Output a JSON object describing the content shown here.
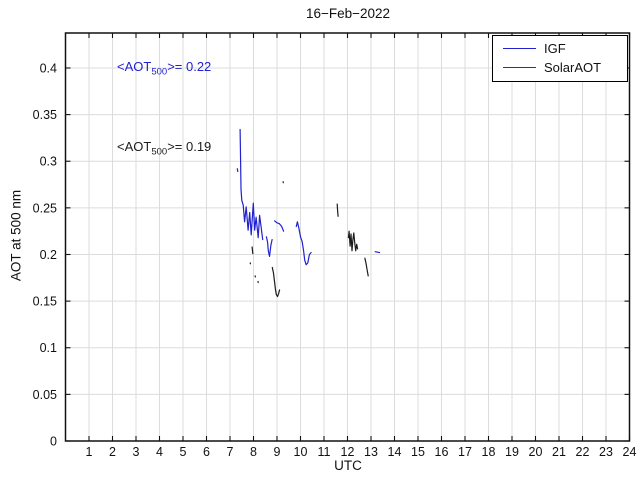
{
  "title": "16−Feb−2022",
  "axes": {
    "xlabel": "UTC",
    "ylabel": "AOT at 500 nm"
  },
  "annotations": [
    {
      "pre": "<AOT",
      "sub": "500",
      "post": ">= 0.22",
      "color": "#2121cf"
    },
    {
      "pre": "<AOT",
      "sub": "500",
      "post": ">= 0.19",
      "color": "#1c1c1c"
    }
  ],
  "legend": {
    "items": [
      {
        "label": "IGF",
        "color": "#2121cf"
      },
      {
        "label": "SolarAOT",
        "color": "#3c3c3c"
      }
    ]
  },
  "chart_data": {
    "type": "line",
    "title": "16−Feb−2022",
    "xlabel": "UTC",
    "ylabel": "AOT at 500 nm",
    "xlim": [
      0,
      24
    ],
    "ylim": [
      0,
      0.4375
    ],
    "x_ticks": [
      1,
      2,
      3,
      4,
      5,
      6,
      7,
      8,
      9,
      10,
      11,
      12,
      13,
      14,
      15,
      16,
      17,
      18,
      19,
      20,
      21,
      22,
      23,
      24
    ],
    "y_ticks": [
      0,
      0.05,
      0.1,
      0.15,
      0.2,
      0.25,
      0.3,
      0.35,
      0.4
    ],
    "grid": true,
    "legend_position": "top-right",
    "series": [
      {
        "name": "IGF",
        "color": "#2121cf",
        "mean_aot_500": 0.22,
        "segments": [
          [
            [
              7.31,
              0.292
            ],
            [
              7.33,
              0.289
            ]
          ],
          [
            [
              7.43,
              0.334
            ],
            [
              7.45,
              0.3
            ],
            [
              7.47,
              0.27
            ],
            [
              7.5,
              0.258
            ],
            [
              7.56,
              0.253
            ],
            [
              7.62,
              0.235
            ],
            [
              7.69,
              0.251
            ],
            [
              7.77,
              0.226
            ],
            [
              7.84,
              0.245
            ],
            [
              7.9,
              0.221
            ],
            [
              7.99,
              0.255
            ],
            [
              8.05,
              0.226
            ],
            [
              8.11,
              0.24
            ],
            [
              8.2,
              0.218
            ],
            [
              8.26,
              0.242
            ],
            [
              8.33,
              0.228
            ],
            [
              8.39,
              0.216
            ]
          ],
          [
            [
              8.55,
              0.219
            ],
            [
              8.6,
              0.213
            ],
            [
              8.63,
              0.204
            ],
            [
              8.68,
              0.198
            ],
            [
              8.74,
              0.21
            ],
            [
              8.79,
              0.216
            ]
          ],
          [
            [
              8.9,
              0.236
            ],
            [
              9.0,
              0.234
            ],
            [
              9.1,
              0.233
            ],
            [
              9.2,
              0.23
            ],
            [
              9.28,
              0.225
            ]
          ],
          [
            [
              9.82,
              0.23
            ],
            [
              9.87,
              0.235
            ],
            [
              9.93,
              0.228
            ],
            [
              10.0,
              0.219
            ],
            [
              10.07,
              0.214
            ],
            [
              10.13,
              0.204
            ],
            [
              10.18,
              0.194
            ],
            [
              10.24,
              0.189
            ],
            [
              10.31,
              0.191
            ],
            [
              10.38,
              0.2
            ],
            [
              10.45,
              0.202
            ]
          ],
          [
            [
              13.18,
              0.203
            ],
            [
              13.36,
              0.202
            ]
          ]
        ]
      },
      {
        "name": "SolarAOT",
        "color": "#1c1c1c",
        "mean_aot_500": 0.19,
        "segments": [
          [
            [
              7.86,
              0.191
            ],
            [
              7.87,
              0.19
            ]
          ],
          [
            [
              7.94,
              0.208
            ],
            [
              7.97,
              0.201
            ]
          ],
          [
            [
              8.07,
              0.177
            ],
            [
              8.08,
              0.176
            ]
          ],
          [
            [
              8.19,
              0.171
            ],
            [
              8.2,
              0.17
            ]
          ],
          [
            [
              8.8,
              0.186
            ],
            [
              8.85,
              0.18
            ],
            [
              8.89,
              0.172
            ],
            [
              8.93,
              0.163
            ],
            [
              8.97,
              0.157
            ],
            [
              9.02,
              0.155
            ],
            [
              9.07,
              0.158
            ],
            [
              9.11,
              0.162
            ]
          ],
          [
            [
              9.26,
              0.278
            ],
            [
              9.27,
              0.277
            ]
          ],
          [
            [
              11.56,
              0.254
            ],
            [
              11.58,
              0.247
            ],
            [
              11.6,
              0.241
            ]
          ],
          [
            [
              12.04,
              0.218
            ],
            [
              12.07,
              0.225
            ],
            [
              12.11,
              0.209
            ],
            [
              12.15,
              0.222
            ],
            [
              12.19,
              0.204
            ],
            [
              12.23,
              0.216
            ],
            [
              12.27,
              0.223
            ],
            [
              12.31,
              0.212
            ],
            [
              12.35,
              0.204
            ],
            [
              12.39,
              0.211
            ],
            [
              12.43,
              0.206
            ]
          ],
          [
            [
              12.74,
              0.196
            ],
            [
              12.79,
              0.19
            ],
            [
              12.84,
              0.183
            ],
            [
              12.88,
              0.177
            ]
          ]
        ]
      }
    ]
  }
}
